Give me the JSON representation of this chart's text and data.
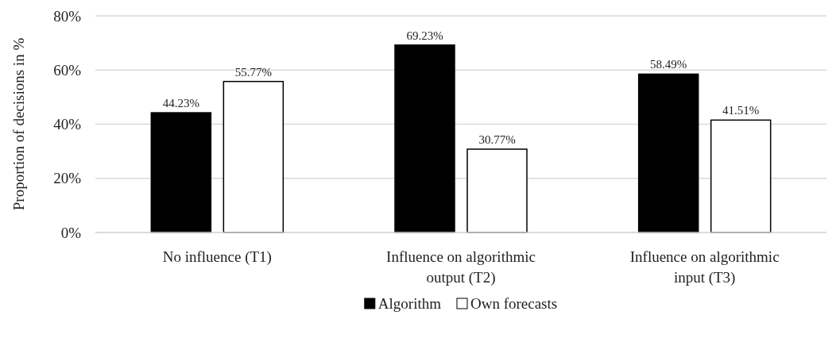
{
  "chart_data": {
    "type": "bar",
    "ylabel": "Proportion of decisions in %",
    "categories": [
      "No influence (T1)",
      "Influence on algorithmic output (T2)",
      "Influence on algorithmic input (T3)"
    ],
    "series": [
      {
        "name": "Algorithm",
        "color": "#000000",
        "values": [
          44.23,
          69.23,
          58.49
        ],
        "value_labels": [
          "44.23%",
          "69.23%",
          "58.49%"
        ]
      },
      {
        "name": "Own forecasts",
        "color": "#ffffff",
        "values": [
          55.77,
          30.77,
          41.51
        ],
        "value_labels": [
          "55.77%",
          "30.77%",
          "41.51%"
        ]
      }
    ],
    "ylim": [
      0,
      80
    ],
    "yticks": [
      {
        "value": 0,
        "label": "0%"
      },
      {
        "value": 20,
        "label": "20%"
      },
      {
        "value": 40,
        "label": "40%"
      },
      {
        "value": 60,
        "label": "60%"
      },
      {
        "value": 80,
        "label": "80%"
      }
    ],
    "grid": "y",
    "legend": "bottom"
  }
}
